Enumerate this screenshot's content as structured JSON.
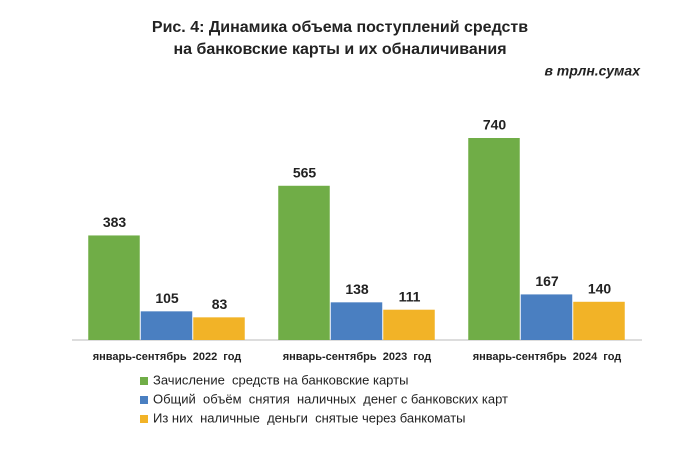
{
  "chart_data": {
    "type": "bar",
    "title_lines": [
      "Рис. 4: Динамика объема поступлений средств",
      "на банковские карты и их обналичивания"
    ],
    "subtitle": "в трлн.сумах",
    "categories": [
      "январь-сентябрь  2022  год",
      "январь-сентябрь  2023  год",
      "январь-сентябрь  2024  год"
    ],
    "series": [
      {
        "name": "Зачисление  средств на банковские карты",
        "color": "#70ad47",
        "values": [
          383,
          565,
          740
        ]
      },
      {
        "name": "Общий  объём  снятия  наличных  денег с банковских карт",
        "color": "#4a7fc1",
        "values": [
          105,
          138,
          167
        ]
      },
      {
        "name": "Из них  наличные  деньги  снятые через банкоматы",
        "color": "#f2b327",
        "values": [
          83,
          111,
          140
        ]
      }
    ]
  }
}
